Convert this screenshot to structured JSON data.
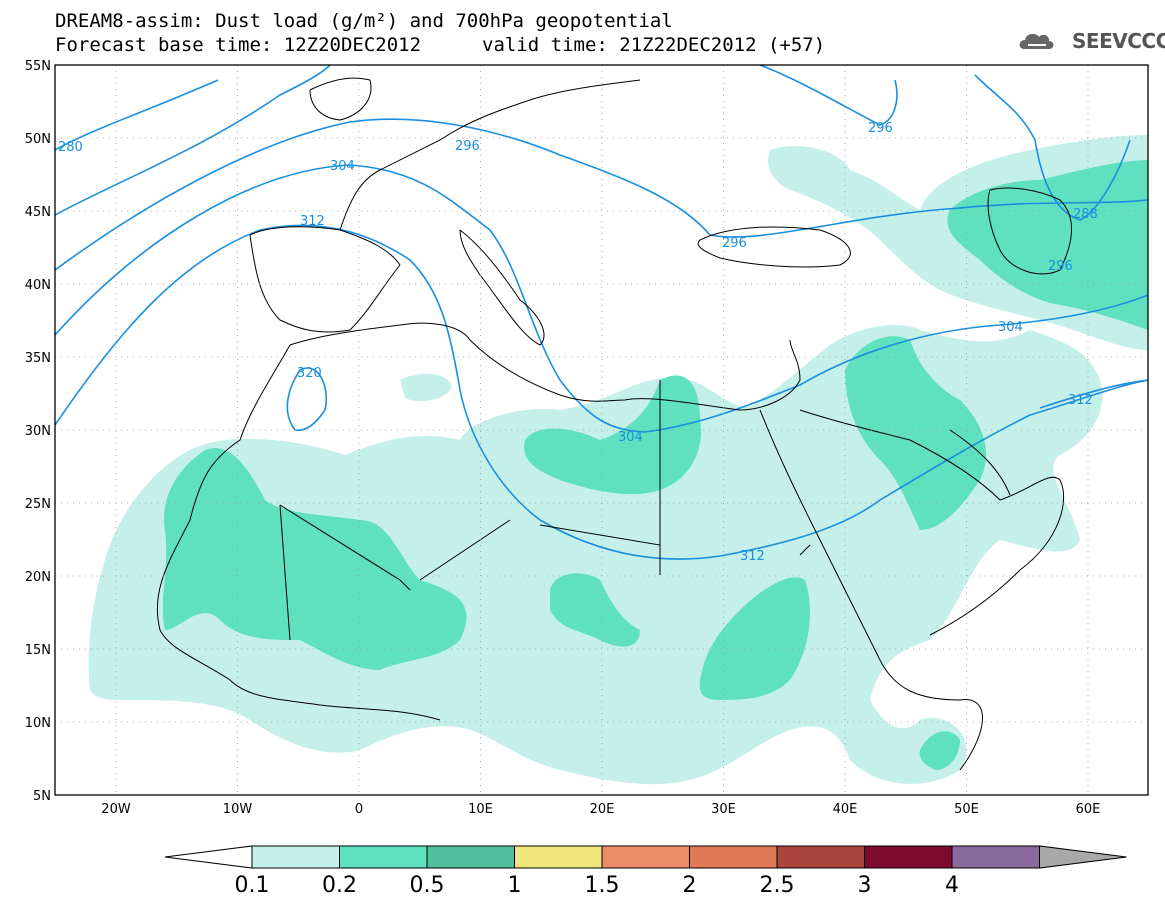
{
  "header": {
    "line1": "DREAM8-assim: Dust load (g/m²) and 700hPa geopotential",
    "line2": "Forecast base time: 12Z20DEC2012",
    "valid": "valid time: 21Z22DEC2012 (+57)",
    "logo": "SEEVCCC"
  },
  "colors": {
    "c01": "#c5f0e9",
    "c02": "#5fe0bf",
    "c05": "#4fbf9c",
    "c1": "#f2e67a",
    "c15": "#eb8c68",
    "c2": "#e07a56",
    "c25": "#a9453d",
    "c3": "#7d0b30",
    "c4": "#8a6a9d",
    "over": "#a8a8a8",
    "contour": "#1a8fe0"
  },
  "chart_data": {
    "type": "map",
    "lat_ticks": [
      "55N",
      "50N",
      "45N",
      "40N",
      "35N",
      "30N",
      "25N",
      "20N",
      "15N",
      "10N",
      "5N"
    ],
    "lon_ticks": [
      "20W",
      "10W",
      "0",
      "10E",
      "20E",
      "30E",
      "40E",
      "50E",
      "60E"
    ],
    "contour_labels": [
      "280",
      "296",
      "304",
      "312",
      "296",
      "296",
      "296",
      "304",
      "312",
      "320",
      "304",
      "312",
      "288"
    ],
    "colorbar": {
      "labels": [
        "0.1",
        "0.2",
        "0.5",
        "1",
        "1.5",
        "2",
        "2.5",
        "3",
        "4"
      ]
    }
  }
}
